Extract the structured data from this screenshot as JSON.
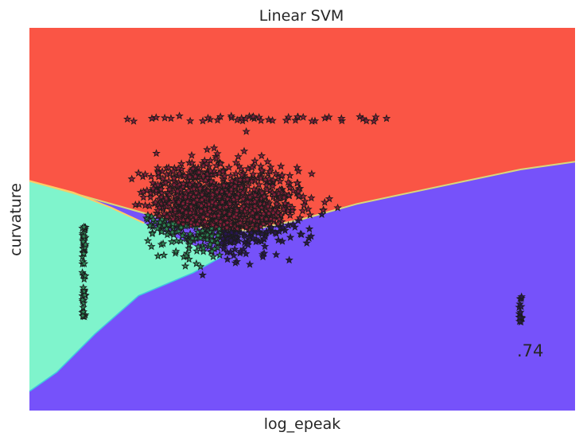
{
  "chart_data": {
    "type": "scatter",
    "title": "Linear SVM",
    "xlabel": "log_epeak",
    "ylabel": "curvature",
    "xlim": [
      0,
      1
    ],
    "ylim": [
      0,
      1
    ],
    "x_ticks": [],
    "y_ticks": [],
    "grid": false,
    "legend": "none",
    "marker": "star",
    "annotation": ".74",
    "region_colors": {
      "class_top": "#fa5545",
      "class_left": "#7ff4cc",
      "class_bottom": "#7652fa",
      "boundary": "#d8d77a"
    },
    "point_colors": {
      "on_top": "#8b1f3b",
      "on_left": "#2d8a58",
      "on_bottom": "#2a1557",
      "edge": "#1c1c1c"
    },
    "boundaries": {
      "top_vs_bottom": [
        [
          0.0,
          0.6
        ],
        [
          0.1,
          0.56
        ],
        [
          0.2,
          0.52
        ],
        [
          0.3,
          0.48
        ],
        [
          0.4,
          0.47
        ],
        [
          0.5,
          0.5
        ],
        [
          0.6,
          0.54
        ],
        [
          0.7,
          0.57
        ],
        [
          0.8,
          0.6
        ],
        [
          0.9,
          0.63
        ],
        [
          1.0,
          0.65
        ]
      ],
      "left_vs_top": [
        [
          0.0,
          0.6
        ],
        [
          0.08,
          0.57
        ],
        [
          0.15,
          0.53
        ],
        [
          0.21,
          0.49
        ]
      ],
      "left_vs_bottom": [
        [
          0.0,
          0.05
        ],
        [
          0.05,
          0.1
        ],
        [
          0.12,
          0.2
        ],
        [
          0.2,
          0.3
        ],
        [
          0.3,
          0.36
        ],
        [
          0.35,
          0.4
        ]
      ]
    },
    "cluster_main": {
      "x_range": [
        0.14,
        0.68
      ],
      "y_range": [
        0.29,
        0.77
      ]
    },
    "column_left": {
      "x": 0.1,
      "y_range": [
        0.24,
        0.48
      ]
    },
    "column_right": {
      "x": 0.9,
      "y_range": [
        0.23,
        0.3
      ]
    }
  }
}
